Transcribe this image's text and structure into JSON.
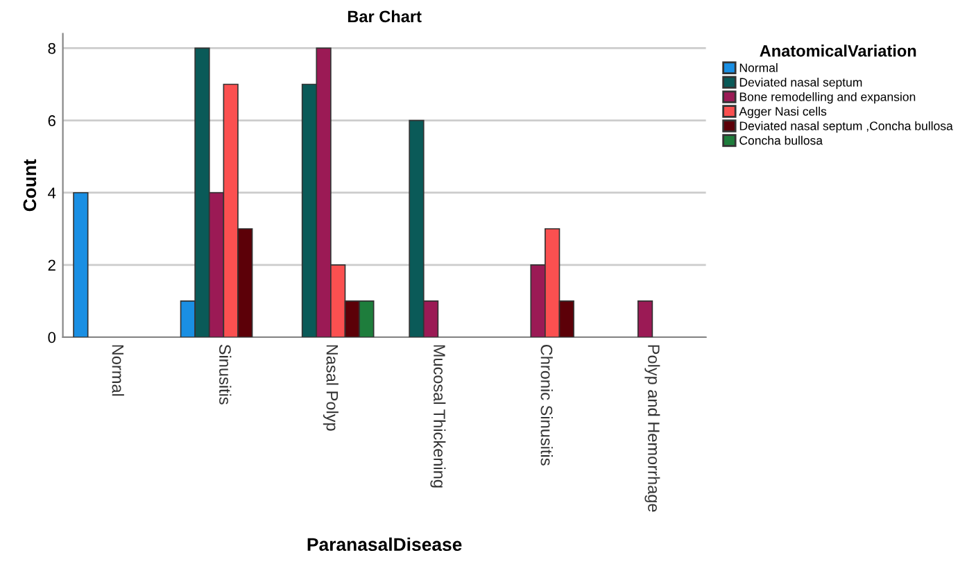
{
  "chart_data": {
    "type": "bar",
    "title": "Bar Chart",
    "xlabel": "ParanasalDisease",
    "ylabel": "Count",
    "legend_title": "AnatomicalVariation",
    "categories": [
      "Normal",
      "Sinusitis",
      "Nasal Polyp",
      "Mucosal Thickening",
      "Chronic Sinusitis",
      "Polyp and Hemorrhage"
    ],
    "series": [
      {
        "name": "Normal",
        "color": "#1a8fe3",
        "values": [
          4,
          1,
          null,
          null,
          null,
          null
        ]
      },
      {
        "name": "Deviated nasal septum",
        "color": "#0a5a58",
        "values": [
          null,
          8,
          7,
          6,
          null,
          null
        ]
      },
      {
        "name": "Bone remodelling and expansion",
        "color": "#9b1a55",
        "values": [
          null,
          4,
          8,
          1,
          2,
          1
        ]
      },
      {
        "name": "Agger Nasi cells",
        "color": "#fb5050",
        "values": [
          null,
          7,
          2,
          null,
          3,
          null
        ]
      },
      {
        "name": "Deviated nasal septum ,Concha bullosa",
        "color": "#5c0008",
        "values": [
          null,
          3,
          1,
          null,
          1,
          null
        ]
      },
      {
        "name": "Concha bullosa",
        "color": "#1e7d3c",
        "values": [
          null,
          null,
          1,
          null,
          null,
          null
        ]
      }
    ],
    "ylim": [
      0,
      8.4
    ],
    "yticks": [
      0,
      2,
      4,
      6,
      8
    ],
    "grid": "y",
    "legend": "right"
  }
}
